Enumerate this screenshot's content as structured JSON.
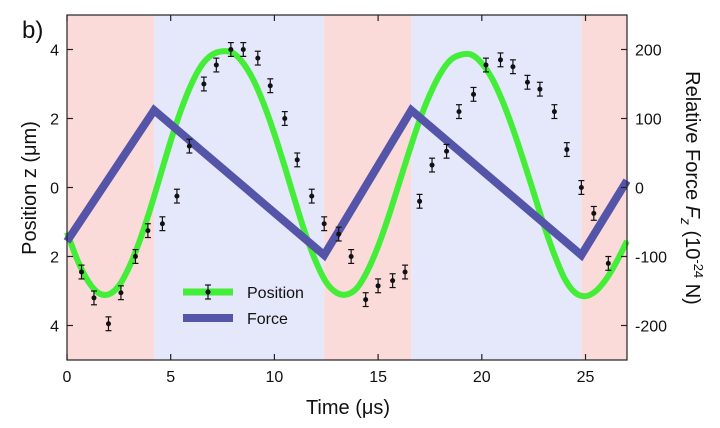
{
  "panel_label": "b)",
  "colors": {
    "region_pink": "#fbdada",
    "region_blue": "#e5e7fb",
    "position_line": "#44ee38",
    "force_line": "#5454a8",
    "data_points": "#111111"
  },
  "chart_data": {
    "type": "line",
    "xlabel": "Time (μs)",
    "ylabel_left": "Position z (μm)",
    "ylabel_right_parts": [
      "Relative Force ",
      "F",
      "z",
      " (10",
      "-24",
      " N)"
    ],
    "xlim": [
      0,
      27
    ],
    "ylim_left": [
      -5,
      5
    ],
    "ylim_right": [
      -250,
      250
    ],
    "x_ticks": [
      0,
      5,
      10,
      15,
      20,
      25
    ],
    "x_tick_labels": [
      "0",
      "5",
      "10",
      "15",
      "20",
      "25"
    ],
    "y_left_ticks": [
      4,
      2,
      0,
      -2,
      -4
    ],
    "y_left_tick_labels": [
      "4",
      "2",
      "0",
      "2",
      "4"
    ],
    "y_right_ticks": [
      200,
      100,
      0,
      -100,
      -200
    ],
    "y_right_tick_labels": [
      "200",
      "100",
      "0",
      "-100",
      "-200"
    ],
    "regions": [
      {
        "start": 0,
        "end": 4.2,
        "color": "pink"
      },
      {
        "start": 4.2,
        "end": 12.4,
        "color": "blue"
      },
      {
        "start": 12.4,
        "end": 16.6,
        "color": "pink"
      },
      {
        "start": 16.6,
        "end": 24.8,
        "color": "blue"
      },
      {
        "start": 24.8,
        "end": 27,
        "color": "pink"
      }
    ],
    "series": [
      {
        "name": "Position",
        "kind": "fit_curve",
        "axis": "left",
        "x": [
          0,
          0.5,
          1.0,
          1.5,
          2.0,
          2.5,
          3.0,
          3.5,
          4.0,
          4.5,
          5.0,
          5.5,
          6.0,
          6.5,
          7.0,
          7.5,
          8.0,
          8.5,
          9.0,
          9.5,
          10.0,
          10.5,
          11.0,
          11.5,
          12.0,
          12.5,
          13.0,
          13.5,
          14.0,
          14.5,
          15.0,
          15.5,
          16.0,
          16.5,
          17.0,
          17.5,
          18.0,
          18.5,
          19.0,
          19.5,
          20.0,
          20.5,
          21.0,
          21.5,
          22.0,
          22.5,
          23.0,
          23.5,
          24.0,
          24.5,
          25.0,
          25.5,
          26.0,
          26.5,
          27.0
        ],
        "y": [
          -1.3,
          -2.1,
          -2.7,
          -3.05,
          -3.1,
          -2.85,
          -2.3,
          -1.55,
          -0.65,
          0.35,
          1.35,
          2.25,
          3.0,
          3.55,
          3.85,
          3.95,
          3.9,
          3.6,
          3.1,
          2.4,
          1.55,
          0.6,
          -0.4,
          -1.35,
          -2.15,
          -2.75,
          -3.05,
          -3.1,
          -2.9,
          -2.4,
          -1.7,
          -0.85,
          0.1,
          1.05,
          1.95,
          2.7,
          3.3,
          3.7,
          3.85,
          3.85,
          3.6,
          3.15,
          2.5,
          1.7,
          0.8,
          -0.15,
          -1.1,
          -1.95,
          -2.65,
          -3.05,
          -3.15,
          -3.0,
          -2.65,
          -2.15,
          -1.55
        ]
      },
      {
        "name": "Position",
        "kind": "points_with_error",
        "axis": "left",
        "x": [
          0.7,
          1.3,
          2.0,
          2.6,
          3.3,
          3.9,
          4.6,
          5.3,
          5.9,
          6.6,
          7.2,
          7.9,
          8.5,
          9.2,
          9.8,
          10.5,
          11.1,
          11.8,
          12.4,
          13.1,
          13.7,
          14.4,
          15.0,
          15.7,
          16.3,
          17.0,
          17.6,
          18.3,
          18.9,
          19.6,
          20.2,
          20.9,
          21.5,
          22.2,
          22.8,
          23.5,
          24.1,
          24.8,
          25.4,
          26.1
        ],
        "y": [
          -2.45,
          -3.2,
          -3.95,
          -3.05,
          -2.0,
          -1.25,
          -1.05,
          -0.25,
          1.2,
          3.0,
          3.55,
          4.0,
          4.0,
          3.75,
          2.95,
          2.0,
          0.8,
          -0.25,
          -1.05,
          -1.35,
          -2.0,
          -3.25,
          -2.85,
          -2.7,
          -2.45,
          -0.4,
          0.65,
          1.05,
          2.2,
          2.7,
          3.55,
          3.7,
          3.5,
          3.05,
          2.85,
          2.2,
          1.1,
          0.0,
          -0.75,
          -2.2
        ],
        "error": 0.2
      },
      {
        "name": "Force",
        "kind": "line",
        "axis": "right",
        "x": [
          0,
          4.2,
          12.4,
          16.6,
          24.8,
          27
        ],
        "y": [
          -78,
          112,
          -98,
          112,
          -98,
          10
        ]
      }
    ],
    "legend": {
      "position": "lower-left",
      "entries": [
        "Position",
        "Force"
      ]
    }
  }
}
